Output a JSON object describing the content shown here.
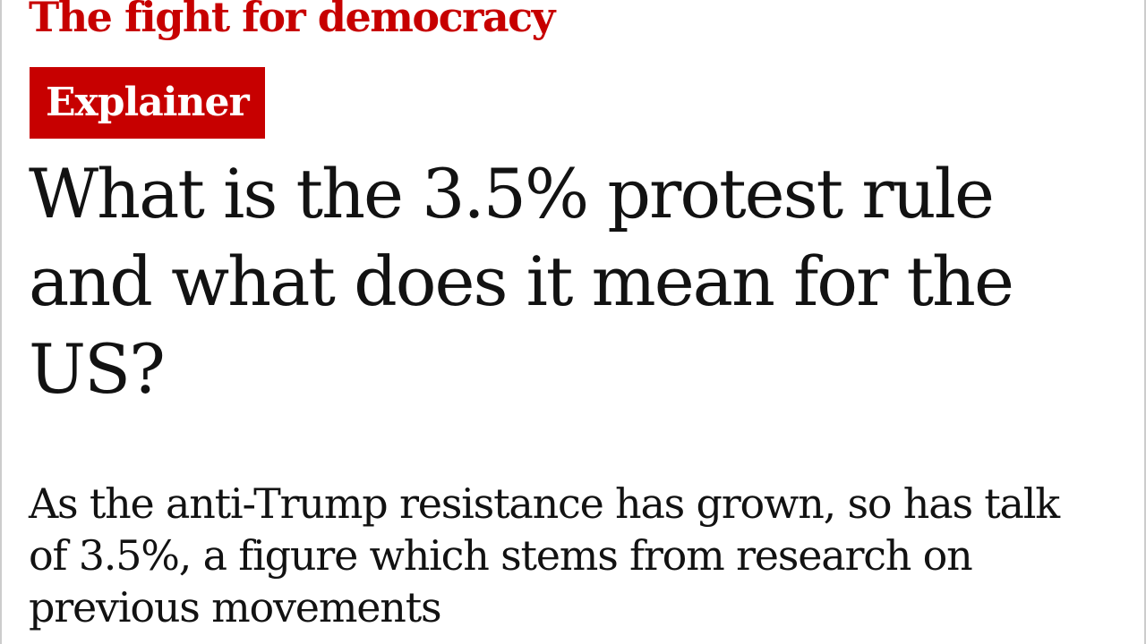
{
  "header": {
    "section": "The fight for democracy",
    "label": "Explainer"
  },
  "article": {
    "headline": "What is the 3.5% protest rule and what does it mean for the US?",
    "standfirst": "As the anti-Trump resistance has grown, so has talk of 3.5%, a figure which stems from research on previous movements"
  }
}
